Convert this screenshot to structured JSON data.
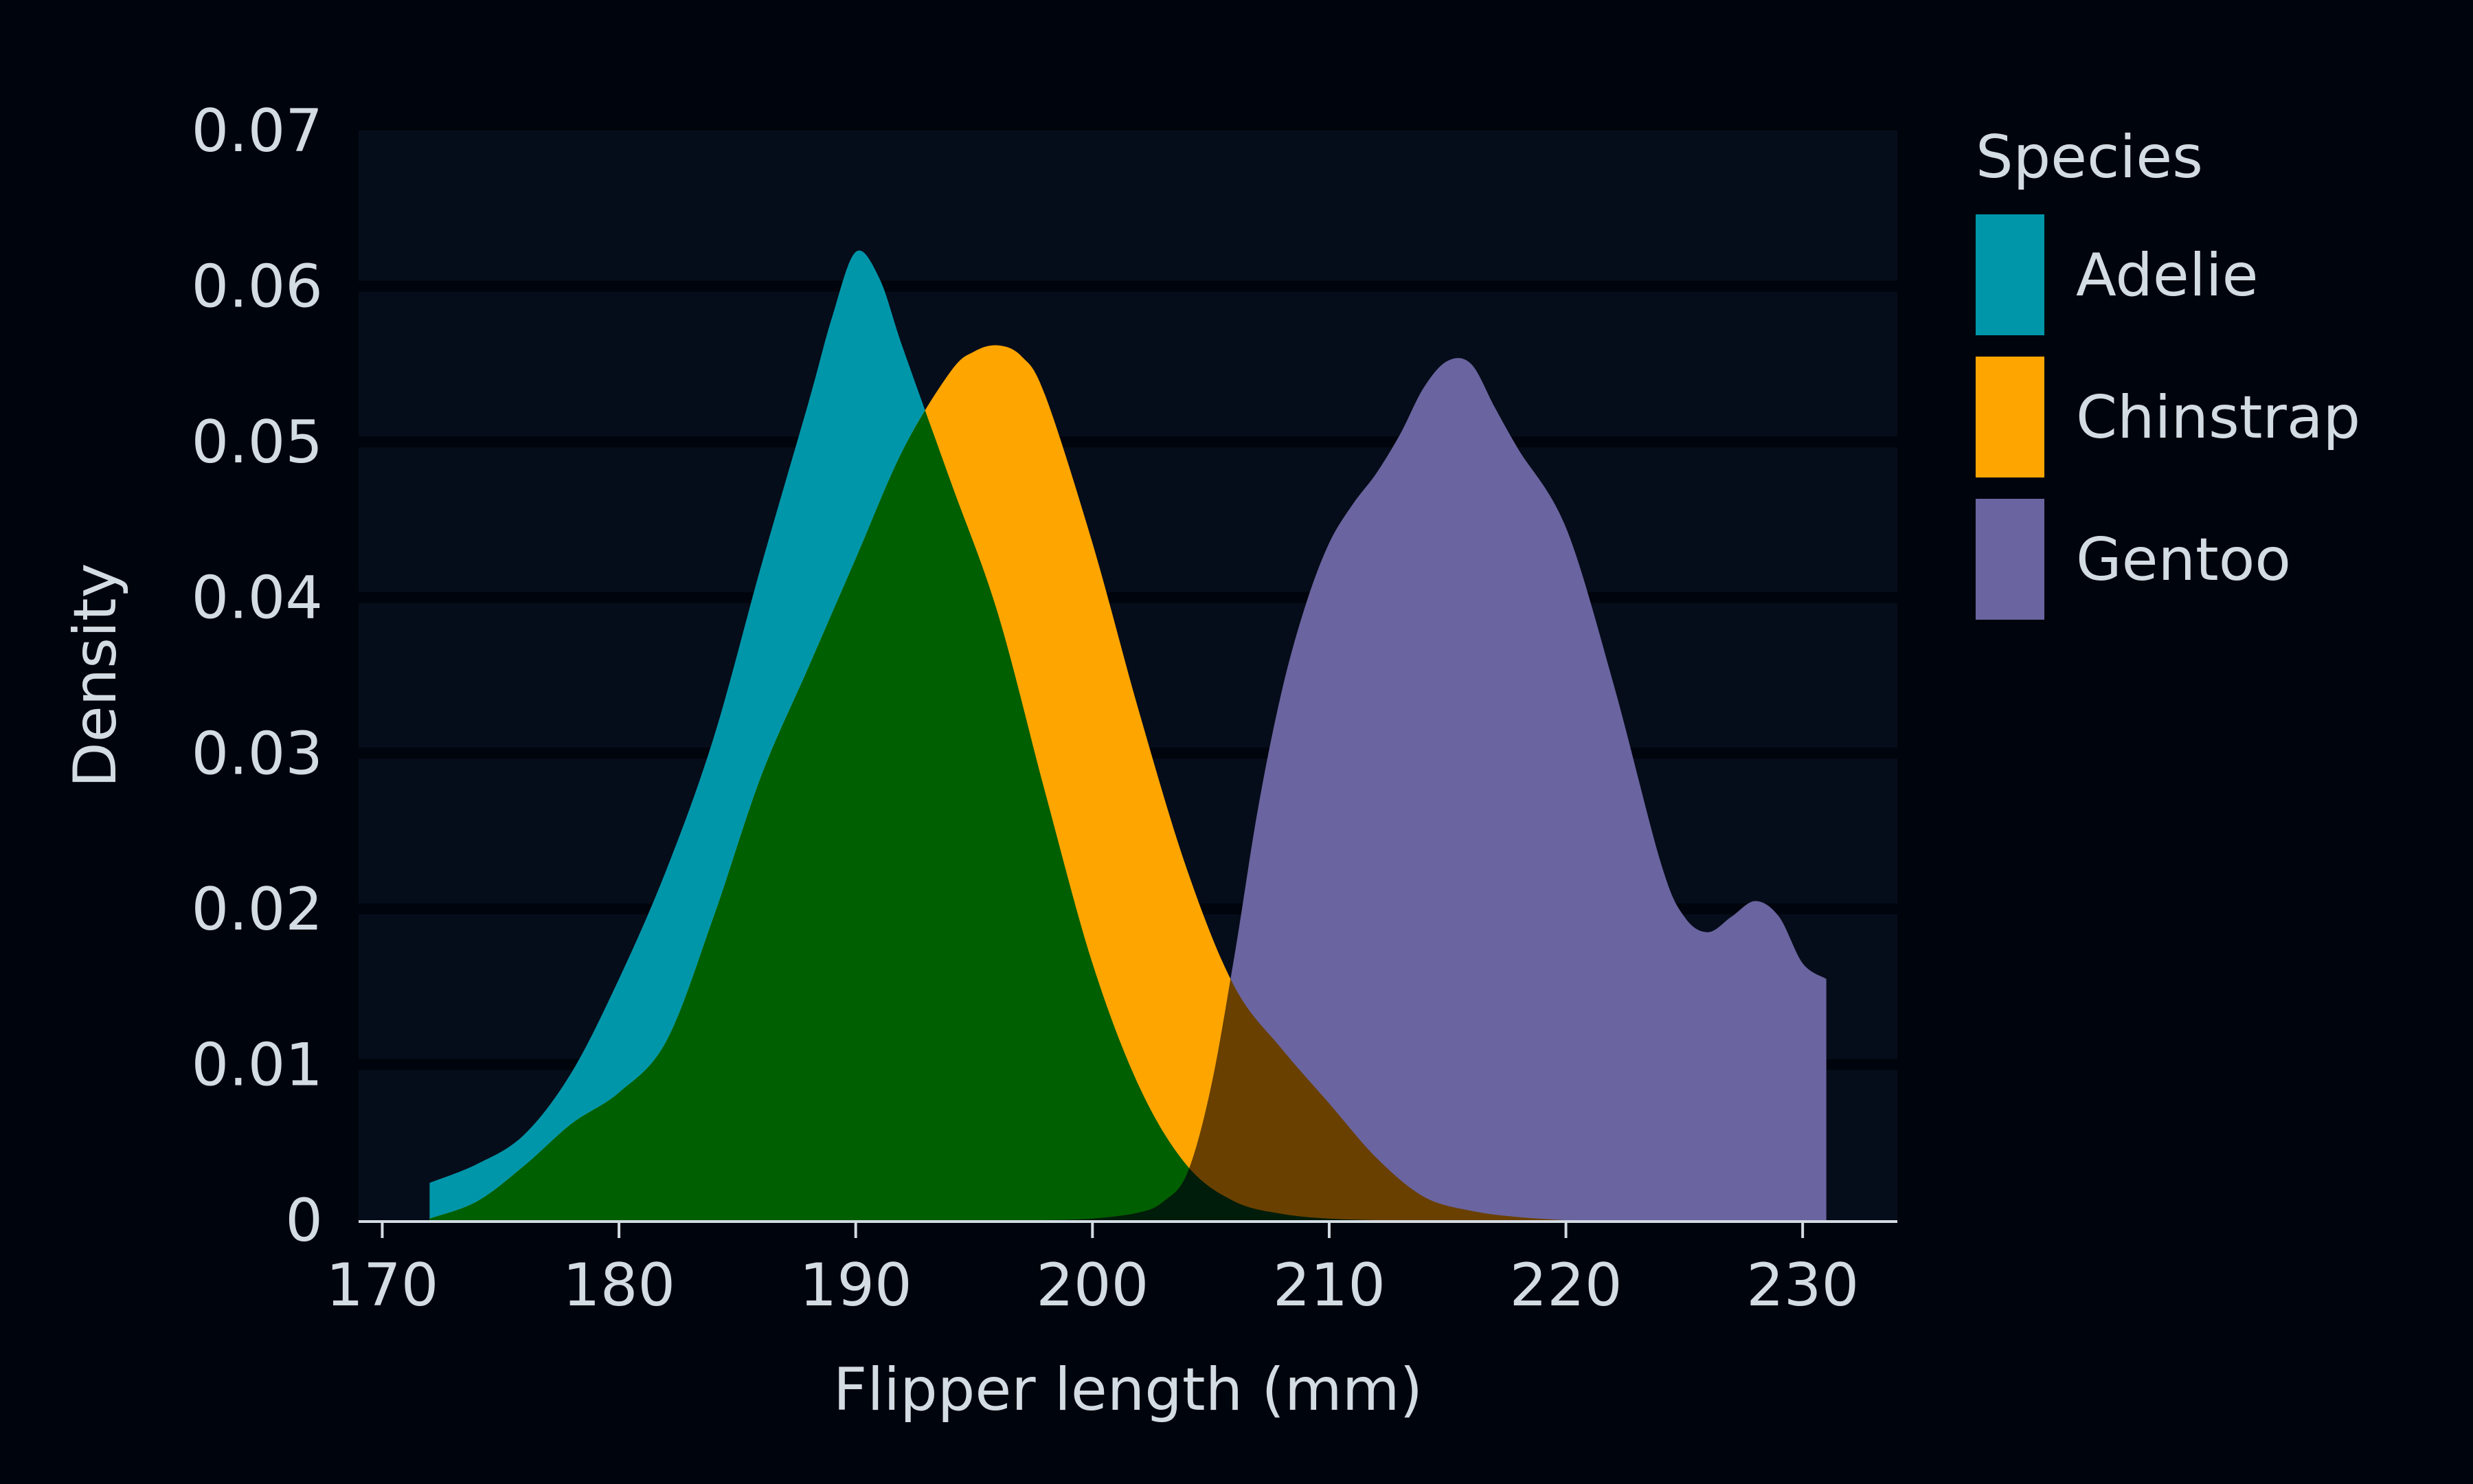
{
  "chart_data": {
    "type": "area",
    "title": "",
    "xlabel": "Flipper length (mm)",
    "ylabel": "Density",
    "xlim": [
      169,
      234
    ],
    "ylim": [
      0,
      0.07
    ],
    "x_ticks": [
      170,
      180,
      190,
      200,
      210,
      220,
      230
    ],
    "y_ticks": [
      0,
      0.01,
      0.02,
      0.03,
      0.04,
      0.05,
      0.06,
      0.07
    ],
    "y_tick_labels": [
      "0",
      "0.01",
      "0.02",
      "0.03",
      "0.04",
      "0.05",
      "0.06",
      "0.07"
    ],
    "grid": "horizontal",
    "legend": {
      "title": "Species",
      "placement": "right"
    },
    "series": [
      {
        "name": "Adelie",
        "color": "#0096aa",
        "x": [
          172,
          174,
          176,
          178,
          180,
          182,
          184,
          186,
          188,
          189,
          190,
          191,
          192,
          194,
          196,
          198,
          200,
          202,
          204,
          206,
          208,
          210,
          212
        ],
        "y": [
          0.0024,
          0.0036,
          0.0055,
          0.0095,
          0.0155,
          0.0225,
          0.031,
          0.042,
          0.0525,
          0.058,
          0.0622,
          0.0605,
          0.056,
          0.0475,
          0.039,
          0.0275,
          0.0165,
          0.0085,
          0.0035,
          0.0012,
          0.0004,
          0.0001,
          0
        ]
      },
      {
        "name": "Chinstrap",
        "color": "#ffa500",
        "x": [
          172,
          174,
          176,
          178,
          180,
          182,
          184,
          186,
          188,
          190,
          192,
          194,
          195,
          196,
          197,
          198,
          200,
          202,
          204,
          206,
          208,
          210,
          212,
          214,
          216,
          218,
          220
        ],
        "y": [
          0.0001,
          0.0012,
          0.0035,
          0.0062,
          0.0082,
          0.0115,
          0.0195,
          0.0285,
          0.0355,
          0.0425,
          0.0495,
          0.0545,
          0.0558,
          0.0562,
          0.0555,
          0.053,
          0.0435,
          0.0325,
          0.0225,
          0.015,
          0.011,
          0.0075,
          0.004,
          0.0015,
          0.0006,
          0.0002,
          0
        ]
      },
      {
        "name": "Gentoo",
        "color": "#6a64a0",
        "x": [
          198,
          200,
          202,
          203,
          204,
          205,
          206,
          207,
          208,
          209,
          210,
          211,
          212,
          213,
          214,
          215,
          216,
          217,
          218,
          220,
          222,
          224,
          225,
          226,
          227,
          228,
          229,
          230,
          231
        ],
        "y": [
          0,
          0.0001,
          0.0005,
          0.0012,
          0.003,
          0.0085,
          0.017,
          0.0265,
          0.034,
          0.0395,
          0.0435,
          0.046,
          0.048,
          0.0505,
          0.0535,
          0.0552,
          0.055,
          0.0522,
          0.0495,
          0.0445,
          0.0345,
          0.023,
          0.0195,
          0.0185,
          0.0195,
          0.0205,
          0.0195,
          0.0165,
          0.0155
        ]
      }
    ],
    "overlap_colors": {
      "adelie_chinstrap": "#005f00",
      "chinstrap_gentoo": "#694000",
      "all_three": "#001c0a"
    }
  }
}
